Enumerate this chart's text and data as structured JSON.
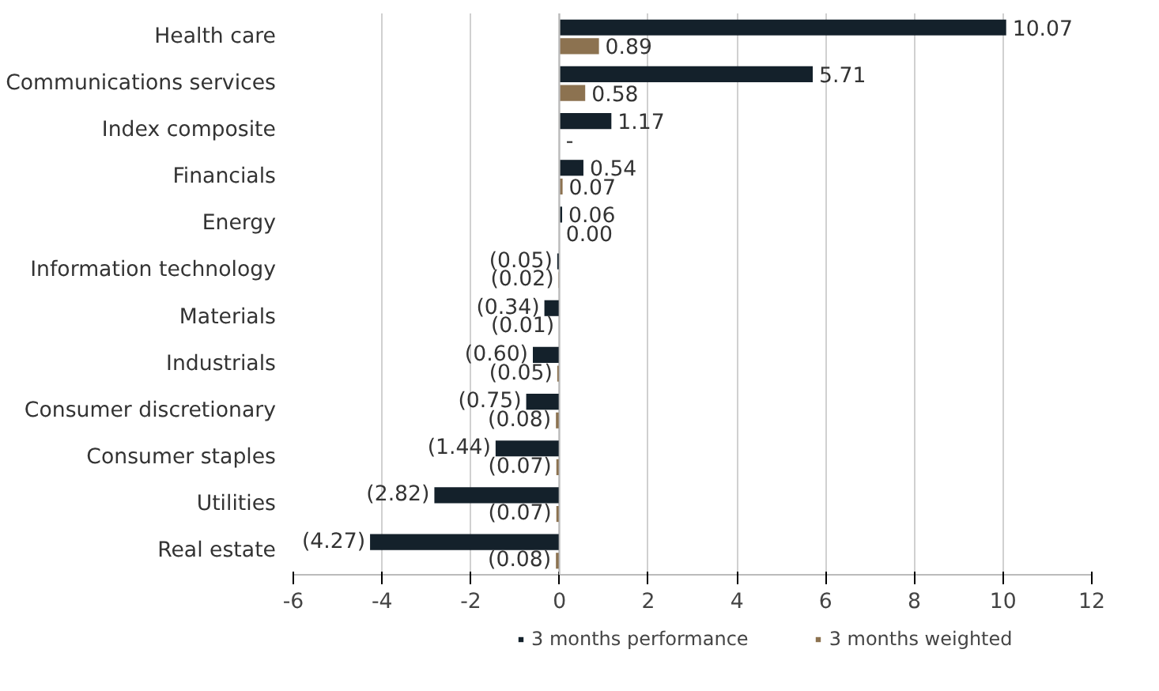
{
  "chart_data": {
    "type": "bar",
    "orientation": "horizontal",
    "categories": [
      "Health care",
      "Communications services",
      "Index composite",
      "Financials",
      "Energy",
      "Information technology",
      "Materials",
      "Industrials",
      "Consumer discretionary",
      "Consumer staples",
      "Utilities",
      "Real estate"
    ],
    "series": [
      {
        "name": "3 months performance",
        "color": "#14212b",
        "values": [
          10.07,
          5.71,
          1.17,
          0.54,
          0.06,
          -0.05,
          -0.34,
          -0.6,
          -0.75,
          -1.44,
          -2.82,
          -4.27
        ],
        "value_labels": [
          "10.07",
          "5.71",
          "1.17",
          "0.54",
          "0.06",
          "(0.05)",
          "(0.34)",
          "(0.60)",
          "(0.75)",
          "(1.44)",
          "(2.82)",
          "(4.27)"
        ]
      },
      {
        "name": "3 months weighted",
        "color": "#8c7250",
        "values": [
          0.89,
          0.58,
          null,
          0.07,
          0.0,
          -0.02,
          -0.01,
          -0.05,
          -0.08,
          -0.07,
          -0.07,
          -0.08
        ],
        "value_labels": [
          "0.89",
          "0.58",
          "-",
          "0.07",
          "0.00",
          "(0.02)",
          "(0.01)",
          "(0.05)",
          "(0.08)",
          "(0.07)",
          "(0.07)",
          "(0.08)"
        ]
      }
    ],
    "xlim": [
      -6,
      12
    ],
    "xticks": [
      -6,
      -4,
      -2,
      0,
      2,
      4,
      6,
      8,
      10,
      12
    ],
    "grid": "x",
    "legend": "bottom"
  }
}
